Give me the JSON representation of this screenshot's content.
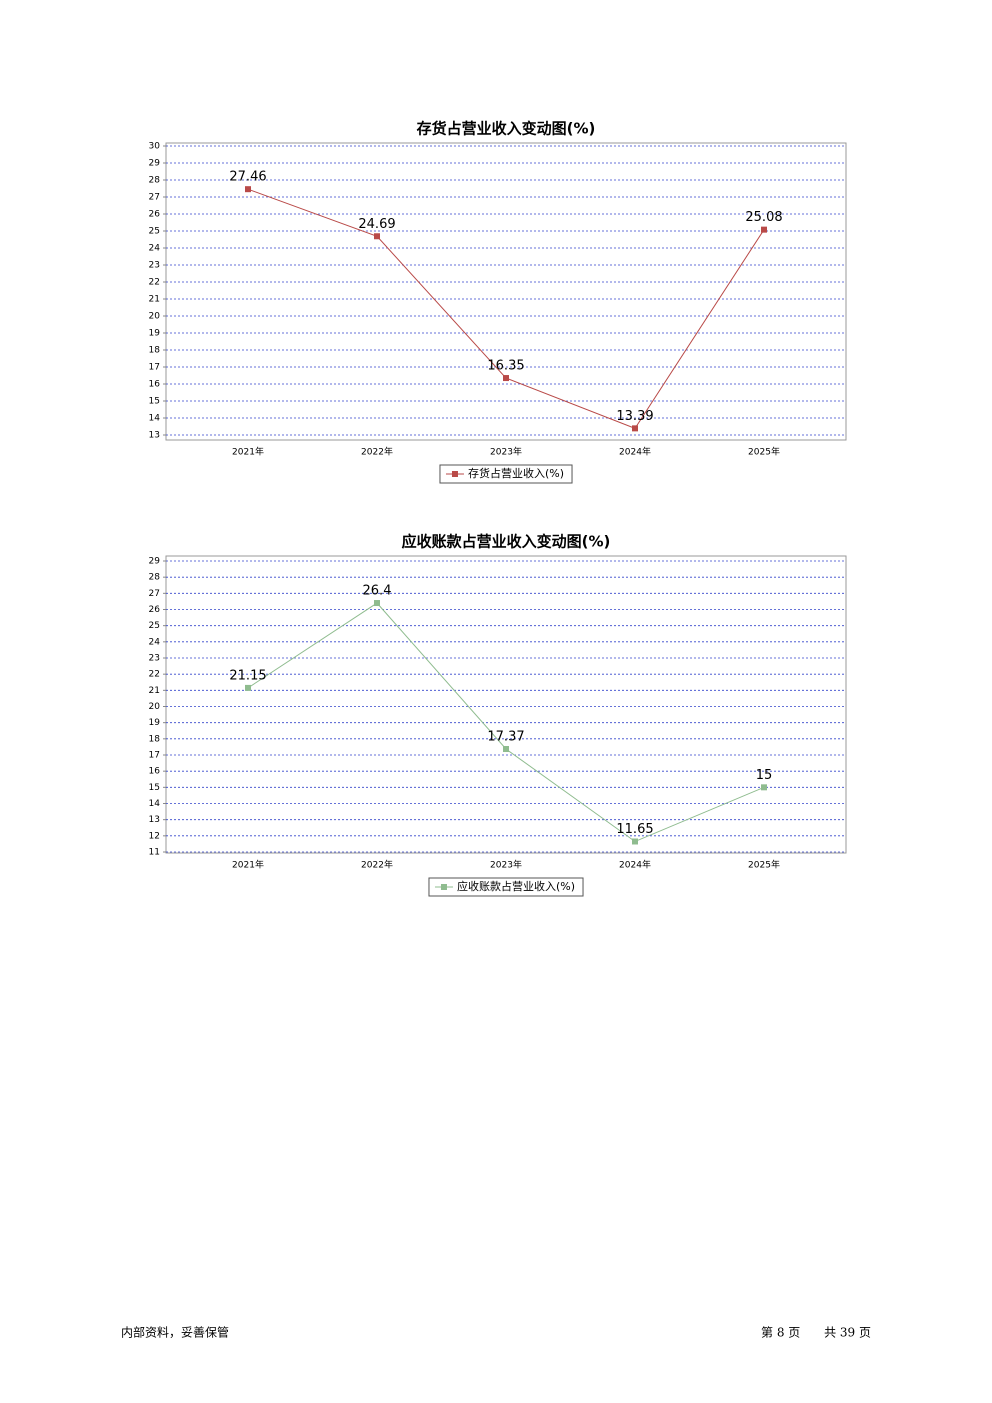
{
  "chart_data": [
    {
      "type": "line",
      "title": "存货占营业收入变动图(%)",
      "categories": [
        "2021年",
        "2022年",
        "2023年",
        "2024年",
        "2025年"
      ],
      "series": [
        {
          "name": "存货占营业收入(%)",
          "color": "#b94a48",
          "values": [
            27.46,
            24.69,
            16.35,
            13.39,
            25.08
          ]
        }
      ],
      "ylim": [
        13,
        30
      ],
      "yticks": [
        13,
        14,
        15,
        16,
        17,
        18,
        19,
        20,
        21,
        22,
        23,
        24,
        25,
        26,
        27,
        28,
        29,
        30
      ],
      "grid": true
    },
    {
      "type": "line",
      "title": "应收账款占营业收入变动图(%)",
      "categories": [
        "2021年",
        "2022年",
        "2023年",
        "2024年",
        "2025年"
      ],
      "series": [
        {
          "name": "应收账款占营业收入(%)",
          "color": "#8fbc8f",
          "values": [
            21.15,
            26.4,
            17.37,
            11.65,
            15
          ]
        }
      ],
      "ylim": [
        11,
        29
      ],
      "yticks": [
        11,
        12,
        13,
        14,
        15,
        16,
        17,
        18,
        19,
        20,
        21,
        22,
        23,
        24,
        25,
        26,
        27,
        28,
        29
      ],
      "grid": true
    }
  ],
  "footer": {
    "left": "内部资料，妥善保管",
    "page": "第 8 页",
    "total": "共 39 页"
  }
}
